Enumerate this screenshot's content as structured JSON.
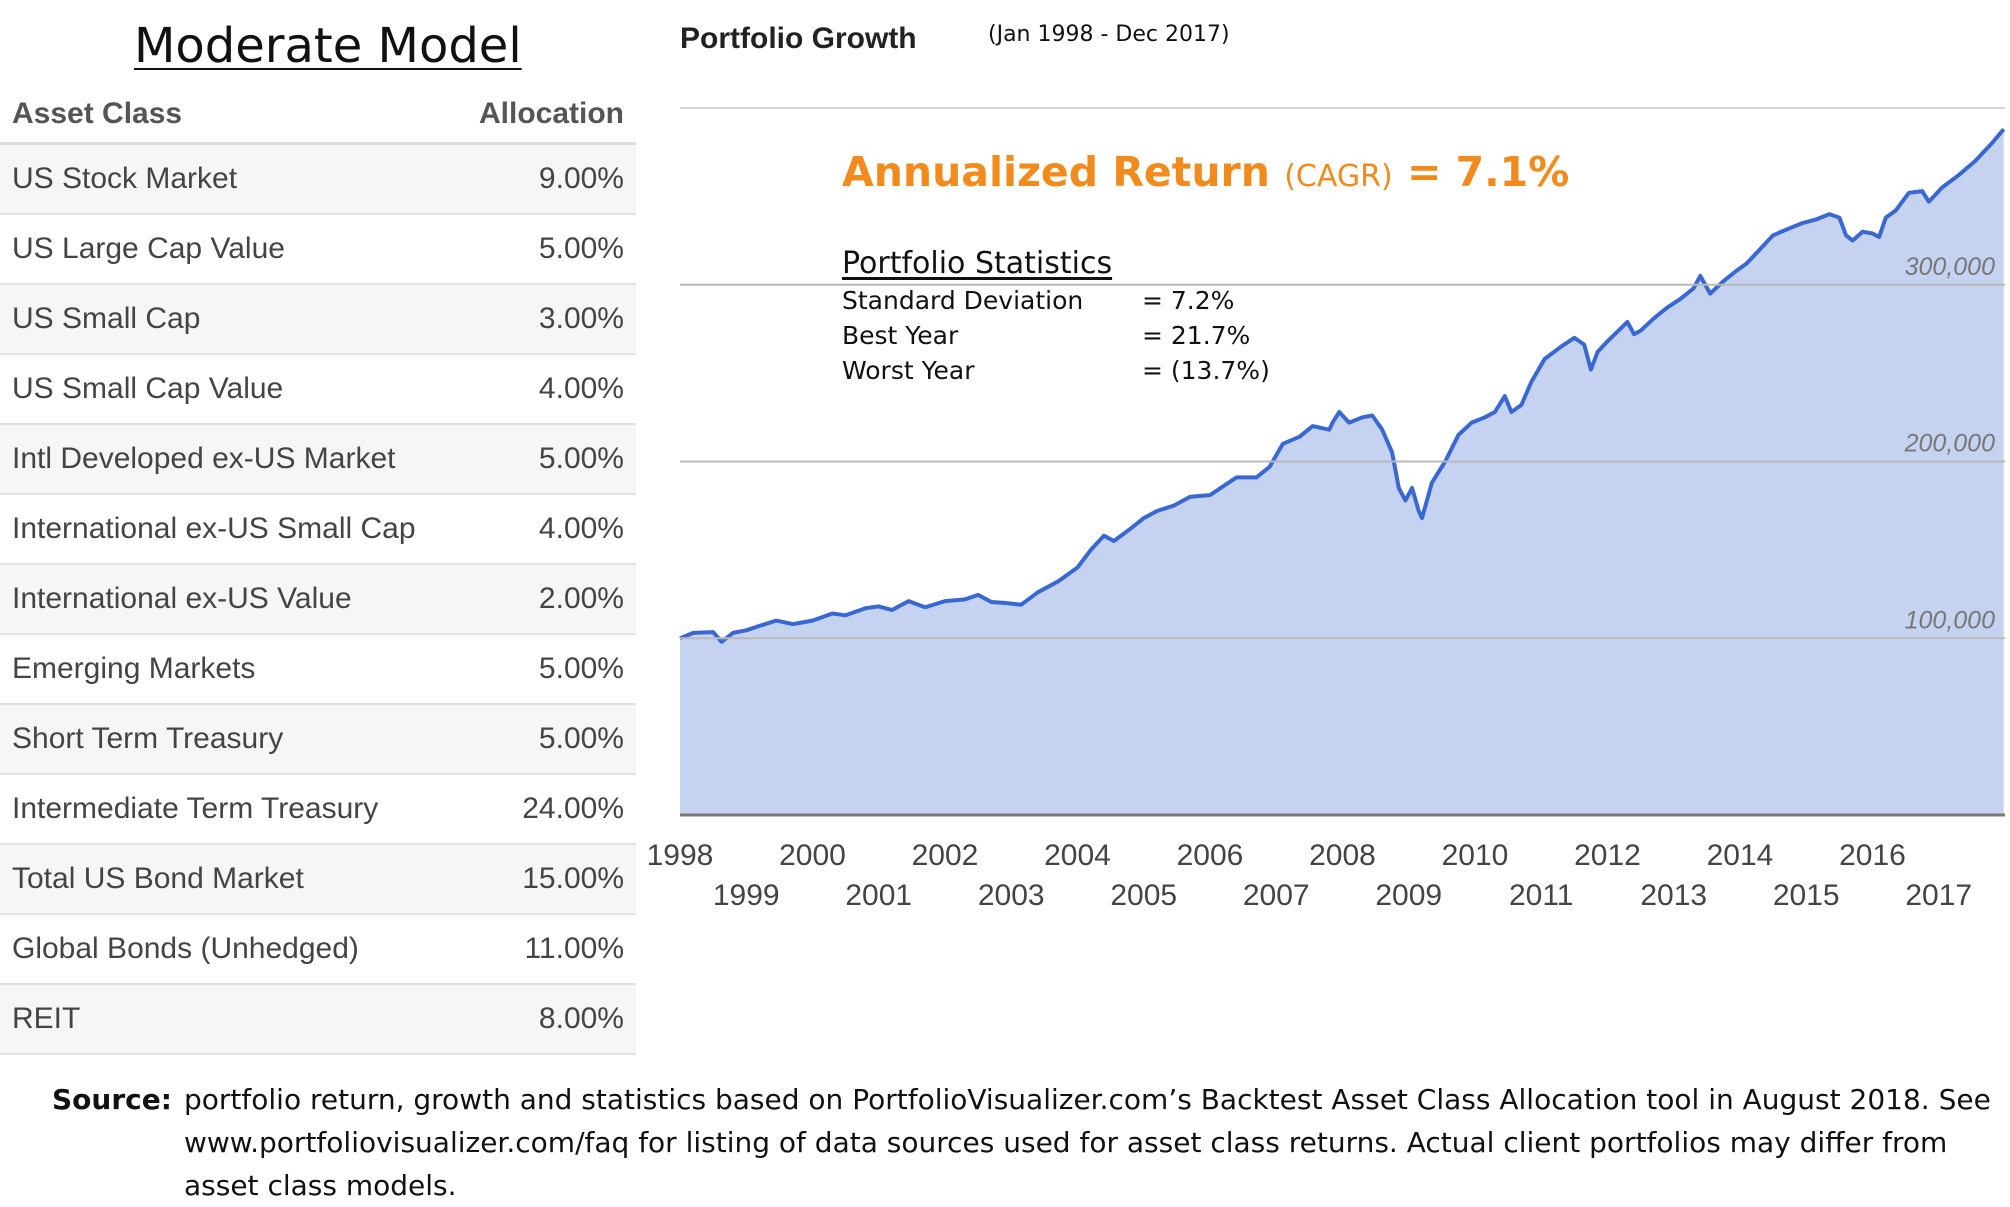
{
  "model_title": "Moderate Model",
  "table": {
    "headers": [
      "Asset Class",
      "Allocation"
    ],
    "rows": [
      {
        "asset": "US Stock Market",
        "allocation": "9.00%"
      },
      {
        "asset": "US Large Cap Value",
        "allocation": "5.00%"
      },
      {
        "asset": "US Small Cap",
        "allocation": "3.00%"
      },
      {
        "asset": "US Small Cap Value",
        "allocation": "4.00%"
      },
      {
        "asset": "Intl Developed ex-US Market",
        "allocation": "5.00%"
      },
      {
        "asset": "International ex-US Small Cap",
        "allocation": "4.00%"
      },
      {
        "asset": "International ex-US Value",
        "allocation": "2.00%"
      },
      {
        "asset": "Emerging Markets",
        "allocation": "5.00%"
      },
      {
        "asset": "Short Term Treasury",
        "allocation": "5.00%"
      },
      {
        "asset": "Intermediate Term Treasury",
        "allocation": "24.00%"
      },
      {
        "asset": "Total US Bond Market",
        "allocation": "15.00%"
      },
      {
        "asset": "Global Bonds (Unhedged)",
        "allocation": "11.00%"
      },
      {
        "asset": "REIT",
        "allocation": "8.00%"
      }
    ]
  },
  "annotation": {
    "cagr_label": "Annualized Return",
    "cagr_paren": "(CAGR)",
    "cagr_value": "= 7.1%",
    "stats_title": "Portfolio Statistics",
    "stats": [
      {
        "label": "Standard Deviation",
        "value": "= 7.2%"
      },
      {
        "label": "Best Year",
        "value": "= 21.7%"
      },
      {
        "label": "Worst Year",
        "value": "= (13.7%)"
      }
    ]
  },
  "source": {
    "label": "Source:",
    "text": "portfolio return, growth and statistics based on PortfolioVisualizer.com’s Backtest Asset Class Allocation tool in August 2018. See www.portfoliovisualizer.com/faq for listing of data sources used for asset class returns. Actual client portfolios may differ from asset class models."
  },
  "chart_data": {
    "type": "area",
    "title": "Portfolio Growth",
    "subtitle": "(Jan 1998 - Dec 2017)",
    "x_ticks_upper": [
      "1998",
      "2000",
      "2002",
      "2004",
      "2006",
      "2008",
      "2010",
      "2012",
      "2014",
      "2016"
    ],
    "x_ticks_lower": [
      "1999",
      "2001",
      "2003",
      "2005",
      "2007",
      "2009",
      "2011",
      "2013",
      "2015",
      "2017"
    ],
    "y_ticks": [
      "100,000",
      "200,000",
      "300,000"
    ],
    "y_tick_values": [
      100000,
      200000,
      300000
    ],
    "ylim": [
      0,
      400000
    ],
    "xlim": [
      1998,
      2018
    ],
    "grid": true,
    "fill_color": "#c5d3f1",
    "line_color": "#3a68d2",
    "series": [
      {
        "points": [
          [
            1998.0,
            100000
          ],
          [
            1998.2,
            103000
          ],
          [
            1998.5,
            103500
          ],
          [
            1998.63,
            98000
          ],
          [
            1998.8,
            103000
          ],
          [
            1999.0,
            104500
          ],
          [
            1999.2,
            107000
          ],
          [
            1999.45,
            110000
          ],
          [
            1999.7,
            108000
          ],
          [
            2000.0,
            110000
          ],
          [
            2000.3,
            114000
          ],
          [
            2000.5,
            113000
          ],
          [
            2000.8,
            117000
          ],
          [
            2001.0,
            118000
          ],
          [
            2001.2,
            116000
          ],
          [
            2001.45,
            121000
          ],
          [
            2001.7,
            117500
          ],
          [
            2002.0,
            121000
          ],
          [
            2002.3,
            122000
          ],
          [
            2002.5,
            124500
          ],
          [
            2002.7,
            120500
          ],
          [
            2002.9,
            120000
          ],
          [
            2003.15,
            119000
          ],
          [
            2003.4,
            126000
          ],
          [
            2003.7,
            132000
          ],
          [
            2004.0,
            140000
          ],
          [
            2004.2,
            150000
          ],
          [
            2004.4,
            158000
          ],
          [
            2004.55,
            155000
          ],
          [
            2004.8,
            162000
          ],
          [
            2005.0,
            168000
          ],
          [
            2005.2,
            172000
          ],
          [
            2005.45,
            175000
          ],
          [
            2005.7,
            180000
          ],
          [
            2006.0,
            181000
          ],
          [
            2006.2,
            186000
          ],
          [
            2006.4,
            191000
          ],
          [
            2006.7,
            191000
          ],
          [
            2006.9,
            197000
          ],
          [
            2007.1,
            210000
          ],
          [
            2007.35,
            214000
          ],
          [
            2007.55,
            220000
          ],
          [
            2007.8,
            218000
          ],
          [
            2007.85,
            222000
          ],
          [
            2007.95,
            228000
          ],
          [
            2008.1,
            222000
          ],
          [
            2008.3,
            225000
          ],
          [
            2008.45,
            226000
          ],
          [
            2008.6,
            218000
          ],
          [
            2008.75,
            205000
          ],
          [
            2008.85,
            185000
          ],
          [
            2008.95,
            178000
          ],
          [
            2009.05,
            185000
          ],
          [
            2009.15,
            172000
          ],
          [
            2009.2,
            168000
          ],
          [
            2009.35,
            188000
          ],
          [
            2009.55,
            200000
          ],
          [
            2009.75,
            215000
          ],
          [
            2009.95,
            222000
          ],
          [
            2010.15,
            225000
          ],
          [
            2010.3,
            228000
          ],
          [
            2010.45,
            237000
          ],
          [
            2010.55,
            228000
          ],
          [
            2010.7,
            232000
          ],
          [
            2010.85,
            245000
          ],
          [
            2011.05,
            258000
          ],
          [
            2011.3,
            265000
          ],
          [
            2011.5,
            270000
          ],
          [
            2011.65,
            266000
          ],
          [
            2011.75,
            252000
          ],
          [
            2011.85,
            262000
          ],
          [
            2012.0,
            268000
          ],
          [
            2012.3,
            279000
          ],
          [
            2012.4,
            272000
          ],
          [
            2012.5,
            274000
          ],
          [
            2012.7,
            281000
          ],
          [
            2012.9,
            287000
          ],
          [
            2013.1,
            292000
          ],
          [
            2013.3,
            298000
          ],
          [
            2013.4,
            305000
          ],
          [
            2013.55,
            295000
          ],
          [
            2013.75,
            302000
          ],
          [
            2013.95,
            308000
          ],
          [
            2014.1,
            312000
          ],
          [
            2014.25,
            318000
          ],
          [
            2014.5,
            328000
          ],
          [
            2014.75,
            332000
          ],
          [
            2014.95,
            335000
          ],
          [
            2015.15,
            337000
          ],
          [
            2015.35,
            340000
          ],
          [
            2015.5,
            338000
          ],
          [
            2015.6,
            328000
          ],
          [
            2015.7,
            325000
          ],
          [
            2015.85,
            330000
          ],
          [
            2016.0,
            329000
          ],
          [
            2016.1,
            327000
          ],
          [
            2016.2,
            338000
          ],
          [
            2016.35,
            342000
          ],
          [
            2016.55,
            352000
          ],
          [
            2016.75,
            353000
          ],
          [
            2016.85,
            347000
          ],
          [
            2017.05,
            355000
          ],
          [
            2017.3,
            362000
          ],
          [
            2017.55,
            370000
          ],
          [
            2017.8,
            380000
          ],
          [
            2017.98,
            388000
          ]
        ]
      }
    ]
  }
}
